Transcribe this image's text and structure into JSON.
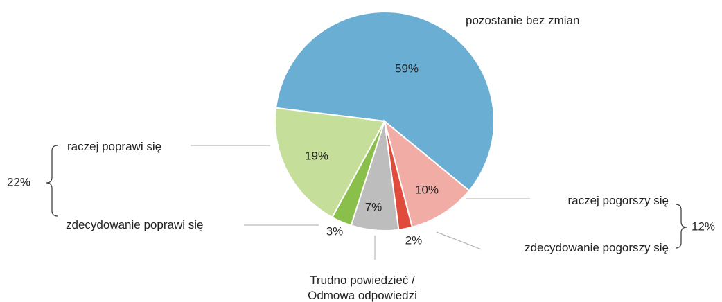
{
  "chart_data": {
    "type": "pie",
    "categories": [
      "pozostanie bez zmian",
      "raczej pogorszy się",
      "zdecydowanie pogorszy się",
      "Trudno powiedzieć / Odmowa odpowiedzi",
      "zdecydowanie poprawi się",
      "raczej poprawi się"
    ],
    "values": [
      59,
      10,
      2,
      7,
      3,
      19
    ],
    "value_labels": [
      "59%",
      "10%",
      "2%",
      "7%",
      "3%",
      "19%"
    ],
    "colors": [
      "#6aaed3",
      "#f2aca6",
      "#e04b3c",
      "#bdbdbd",
      "#8bbf4b",
      "#c5df9a"
    ],
    "groups": [
      {
        "value": 22,
        "label": "22%"
      },
      {
        "value": 12,
        "label": "12%"
      }
    ]
  }
}
